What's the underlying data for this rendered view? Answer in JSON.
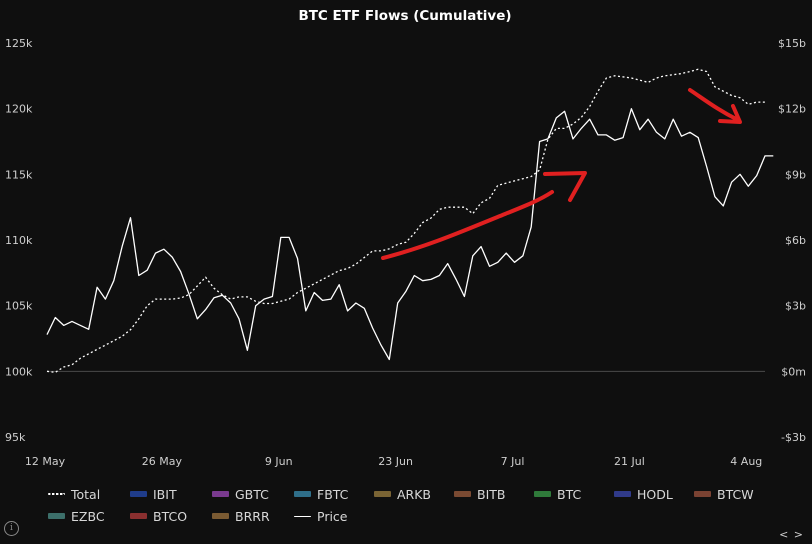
{
  "chart_data": {
    "type": "line",
    "title": "BTC ETF Flows (Cumulative)",
    "xlabel": "",
    "ylabel_left": "",
    "ylabel_right": "",
    "x_tick_labels": [
      "12 May",
      "26 May",
      "9 Jun",
      "23 Jun",
      "7 Jul",
      "21 Jul",
      "4 Aug"
    ],
    "x_tick_index": [
      0,
      14,
      28,
      42,
      56,
      70,
      84
    ],
    "y_left": {
      "range": [
        95000,
        125000
      ],
      "ticks": [
        95000,
        100000,
        105000,
        110000,
        115000,
        120000,
        125000
      ],
      "tick_labels": [
        "95k",
        "100k",
        "105k",
        "110k",
        "115k",
        "120k",
        "125k"
      ]
    },
    "y_right": {
      "range": [
        -3,
        15
      ],
      "ticks": [
        -3,
        0,
        3,
        6,
        9,
        12,
        15
      ],
      "tick_labels": [
        "-$3b",
        "$0m",
        "$3b",
        "$6b",
        "$9b",
        "$12b",
        "$15b"
      ]
    },
    "grid": "zero-line only",
    "legend_position": "bottom",
    "series": [
      {
        "name": "Total",
        "axis": "right",
        "style": "dotted",
        "color": "#ffffff",
        "values": [
          0,
          -0.05,
          0.2,
          0.3,
          0.6,
          0.8,
          1.0,
          1.2,
          1.4,
          1.6,
          1.9,
          2.4,
          3.0,
          3.3,
          3.3,
          3.3,
          3.35,
          3.5,
          3.9,
          4.3,
          3.8,
          3.5,
          3.3,
          3.4,
          3.4,
          3.2,
          3.1,
          3.1,
          3.2,
          3.3,
          3.6,
          3.8,
          4.0,
          4.2,
          4.4,
          4.6,
          4.7,
          4.9,
          5.2,
          5.5,
          5.5,
          5.6,
          5.8,
          5.9,
          6.3,
          6.8,
          7.0,
          7.4,
          7.5,
          7.5,
          7.5,
          7.2,
          7.7,
          7.9,
          8.5,
          8.6,
          8.7,
          8.8,
          8.9,
          9.2,
          10.6,
          11.1,
          11.1,
          11.3,
          11.6,
          12.1,
          12.8,
          13.4,
          13.5,
          13.45,
          13.4,
          13.3,
          13.2,
          13.4,
          13.5,
          13.55,
          13.6,
          13.7,
          13.8,
          13.7,
          13.0,
          12.8,
          12.6,
          12.5,
          12.2,
          12.3,
          12.3
        ]
      },
      {
        "name": "IBIT",
        "axis": "right",
        "color": "#1f3c8a",
        "values": []
      },
      {
        "name": "GBTC",
        "axis": "right",
        "color": "#7a3a8f",
        "values": []
      },
      {
        "name": "FBTC",
        "axis": "right",
        "color": "#2f6f8a",
        "values": []
      },
      {
        "name": "ARKB",
        "axis": "right",
        "color": "#7a6434",
        "values": []
      },
      {
        "name": "BITB",
        "axis": "right",
        "color": "#7a4a32",
        "values": []
      },
      {
        "name": "BTC",
        "axis": "right",
        "color": "#2f7a3a",
        "values": []
      },
      {
        "name": "HODL",
        "axis": "right",
        "color": "#303a8a",
        "values": []
      },
      {
        "name": "BTCW",
        "axis": "right",
        "color": "#7a4232",
        "values": []
      },
      {
        "name": "EZBC",
        "axis": "right",
        "color": "#3c6f6a",
        "values": []
      },
      {
        "name": "BTCO",
        "axis": "right",
        "color": "#8a2f2f",
        "values": []
      },
      {
        "name": "BRRR",
        "axis": "right",
        "color": "#7a5a32",
        "values": []
      },
      {
        "name": "Price",
        "axis": "left",
        "style": "solid",
        "color": "#ffffff",
        "values": [
          102800,
          104100,
          103500,
          103800,
          103500,
          103200,
          106400,
          105500,
          106900,
          109500,
          111700,
          107300,
          107700,
          109000,
          109300,
          108700,
          107600,
          105900,
          104000,
          104700,
          105600,
          105800,
          105200,
          104000,
          101600,
          105000,
          105500,
          105700,
          110200,
          110200,
          108600,
          104600,
          106000,
          105400,
          105500,
          106600,
          104600,
          105200,
          104800,
          103300,
          102000,
          100900,
          105200,
          106100,
          107300,
          106900,
          107000,
          107300,
          108200,
          107000,
          105700,
          108800,
          109500,
          108000,
          108300,
          109000,
          108300,
          108800,
          111000,
          117500,
          117700,
          119300,
          119800,
          117700,
          118500,
          119200,
          118000,
          118000,
          117600,
          117800,
          120000,
          118400,
          119200,
          118200,
          117700,
          119200,
          117900,
          118200,
          117800,
          115600,
          113300,
          112600,
          114400,
          115000,
          114100,
          114900,
          116400,
          116400
        ]
      }
    ]
  },
  "controls": {
    "info_icon": "info-icon",
    "pager_prev": "<",
    "pager_next": ">"
  }
}
